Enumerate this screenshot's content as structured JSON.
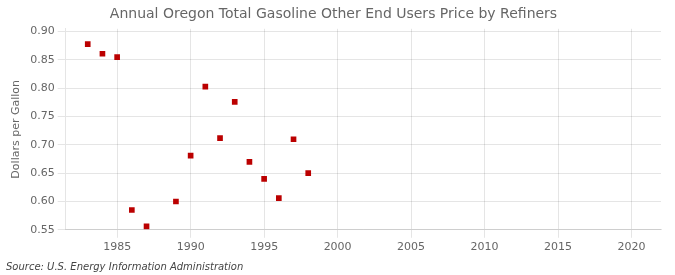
{
  "chart_data": {
    "type": "scatter",
    "title": "Annual Oregon Total Gasoline Other End Users Price by Refiners",
    "ylabel": "Dollars per Gallon",
    "annotations": [
      "Source: U.S. Energy Information Administration"
    ],
    "x": [
      1983,
      1984,
      1985,
      1986,
      1987,
      1989,
      1990,
      1991,
      1992,
      1993,
      1994,
      1995,
      1996,
      1997,
      1998
    ],
    "values": [
      0.878,
      0.861,
      0.855,
      0.585,
      0.556,
      0.6,
      0.681,
      0.803,
      0.712,
      0.776,
      0.67,
      0.64,
      0.606,
      0.71,
      0.65
    ],
    "color": "#bb0000",
    "marker": "square",
    "xlim": [
      1981.5,
      2022
    ],
    "ylim": [
      0.55,
      0.905
    ],
    "xticks": [
      1985,
      1990,
      1995,
      2000,
      2005,
      2010,
      2015,
      2020
    ],
    "yticks": [
      0.55,
      {
        "value": 0.6,
        "label": "0.60"
      },
      0.65,
      {
        "value": 0.7,
        "label": "0.70"
      },
      0.75,
      {
        "value": 0.8,
        "label": "0.80"
      },
      0.85,
      {
        "value": 0.9,
        "label": "0.90"
      }
    ],
    "grid": true
  }
}
